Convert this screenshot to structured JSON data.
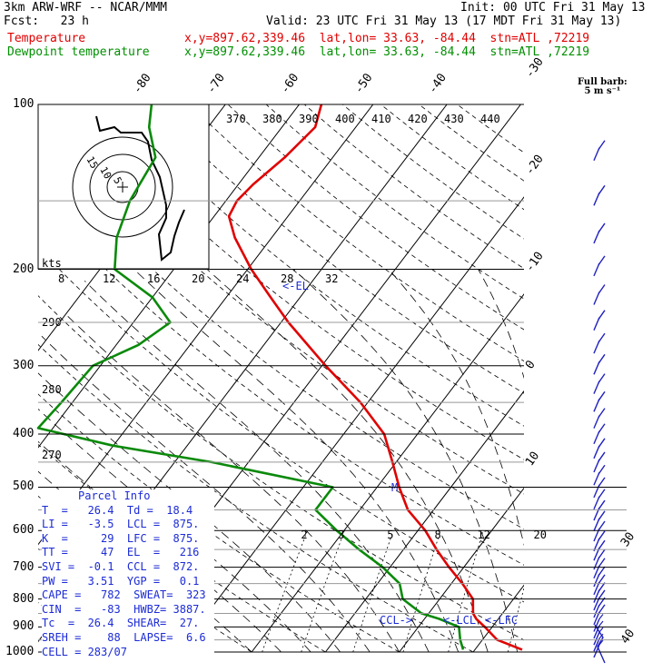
{
  "header": {
    "model": "3km ARW-WRF -- NCAR/MMM",
    "init": "Init: 00 UTC Fri 31 May 13",
    "fcst": "Fcst:   23 h",
    "valid": "Valid: 23 UTC Fri 31 May 13 (17 MDT Fri 31 May 13)",
    "temp_label": "Temperature",
    "temp_info": "x,y=897.62,339.46  lat,lon= 33.63, -84.44  stn=ATL ,72219",
    "dew_label": "Dewpoint temperature",
    "dew_info": "x,y=897.62,339.46  lat,lon= 33.63, -84.44  stn=ATL ,72219"
  },
  "barb_legend": {
    "line1": "Full barb:",
    "line2": "5 m s⁻¹"
  },
  "colors": {
    "temperature": "#e00000",
    "dewpoint": "#0a8a0a",
    "barbs": "#2020c0",
    "info": "#1c2bd6"
  },
  "chart_data": {
    "type": "line",
    "title": "",
    "ylabel": "",
    "y_scale": "log-pressure",
    "ylim": [
      1000,
      100
    ],
    "pressure_labels": [
      100,
      200,
      300,
      400,
      500,
      600,
      700,
      800,
      900,
      1000
    ],
    "isotherm_labels": [
      -80,
      -70,
      -60,
      -50,
      -40,
      -30,
      -20,
      -10,
      0,
      10,
      30,
      40
    ],
    "theta_labels": [
      370,
      380,
      390,
      400,
      410,
      420,
      430,
      440
    ],
    "theta_side_labels": [
      290,
      280,
      270
    ],
    "mixing_ratio_labels": [
      2,
      3,
      5,
      8,
      12,
      20
    ],
    "hodograph_speed_labels": [
      8,
      12,
      16,
      20,
      24,
      28,
      32
    ],
    "hodograph_ring_labels": [
      5,
      10,
      15
    ],
    "hodograph_kts_label": "kts",
    "markers": {
      "el": "<-EL",
      "m": "M",
      "ccl": "CCL->",
      "lcl": "<-LCL",
      "lfc": "<-LFC"
    },
    "series": [
      {
        "name": "Temperature",
        "points": [
          {
            "p": 990,
            "t": 26.4
          },
          {
            "p": 950,
            "t": 22.0
          },
          {
            "p": 900,
            "t": 19.0
          },
          {
            "p": 870,
            "t": 17.0
          },
          {
            "p": 850,
            "t": 16.0
          },
          {
            "p": 800,
            "t": 14.5
          },
          {
            "p": 750,
            "t": 11.5
          },
          {
            "p": 700,
            "t": 8.0
          },
          {
            "p": 650,
            "t": 4.5
          },
          {
            "p": 600,
            "t": 1.0
          },
          {
            "p": 550,
            "t": -3.5
          },
          {
            "p": 500,
            "t": -7.0
          },
          {
            "p": 450,
            "t": -10.5
          },
          {
            "p": 400,
            "t": -14.5
          },
          {
            "p": 350,
            "t": -21.0
          },
          {
            "p": 300,
            "t": -29.5
          },
          {
            "p": 250,
            "t": -39.0
          },
          {
            "p": 225,
            "t": -44.0
          },
          {
            "p": 200,
            "t": -49.5
          },
          {
            "p": 175,
            "t": -55.0
          },
          {
            "p": 160,
            "t": -58.0
          },
          {
            "p": 150,
            "t": -58.5
          },
          {
            "p": 140,
            "t": -58.0
          },
          {
            "p": 125,
            "t": -56.5
          },
          {
            "p": 110,
            "t": -55.5
          },
          {
            "p": 100,
            "t": -57.0
          }
        ]
      },
      {
        "name": "Dewpoint temperature",
        "points": [
          {
            "p": 990,
            "t": 18.4
          },
          {
            "p": 950,
            "t": 17.0
          },
          {
            "p": 900,
            "t": 15.5
          },
          {
            "p": 870,
            "t": 12.0
          },
          {
            "p": 850,
            "t": 9.0
          },
          {
            "p": 800,
            "t": 5.0
          },
          {
            "p": 750,
            "t": 3.0
          },
          {
            "p": 700,
            "t": -1.0
          },
          {
            "p": 650,
            "t": -6.0
          },
          {
            "p": 600,
            "t": -11.0
          },
          {
            "p": 550,
            "t": -16.0
          },
          {
            "p": 500,
            "t": -16.0
          },
          {
            "p": 450,
            "t": -35.0
          },
          {
            "p": 420,
            "t": -50.0
          },
          {
            "p": 390,
            "t": -62.0
          },
          {
            "p": 350,
            "t": -61.5
          },
          {
            "p": 300,
            "t": -61.0
          },
          {
            "p": 275,
            "t": -57.0
          },
          {
            "p": 250,
            "t": -55.0
          },
          {
            "p": 225,
            "t": -60.0
          },
          {
            "p": 200,
            "t": -68.0
          },
          {
            "p": 175,
            "t": -71.0
          },
          {
            "p": 150,
            "t": -73.0
          },
          {
            "p": 125,
            "t": -74.0
          },
          {
            "p": 110,
            "t": -78.0
          },
          {
            "p": 100,
            "t": -80.0
          }
        ]
      }
    ]
  },
  "parcel_info": {
    "title": "Parcel Info",
    "rows": [
      "T  =   26.4  Td =  18.4",
      "LI =   -3.5  LCL =  875.",
      "K  =     29  LFC =  875.",
      "TT =     47  EL  =   216",
      "SVI =  -0.1  CCL =  872.",
      "PW =   3.51  YGP =   0.1",
      "CAPE =   782  SWEAT=  323",
      "CIN  =   -83  HWBZ= 3887.",
      "Tc  =  26.4  SHEAR=  27.",
      "SREH =    88  LAPSE=  6.6",
      "CELL = 283/07"
    ]
  }
}
